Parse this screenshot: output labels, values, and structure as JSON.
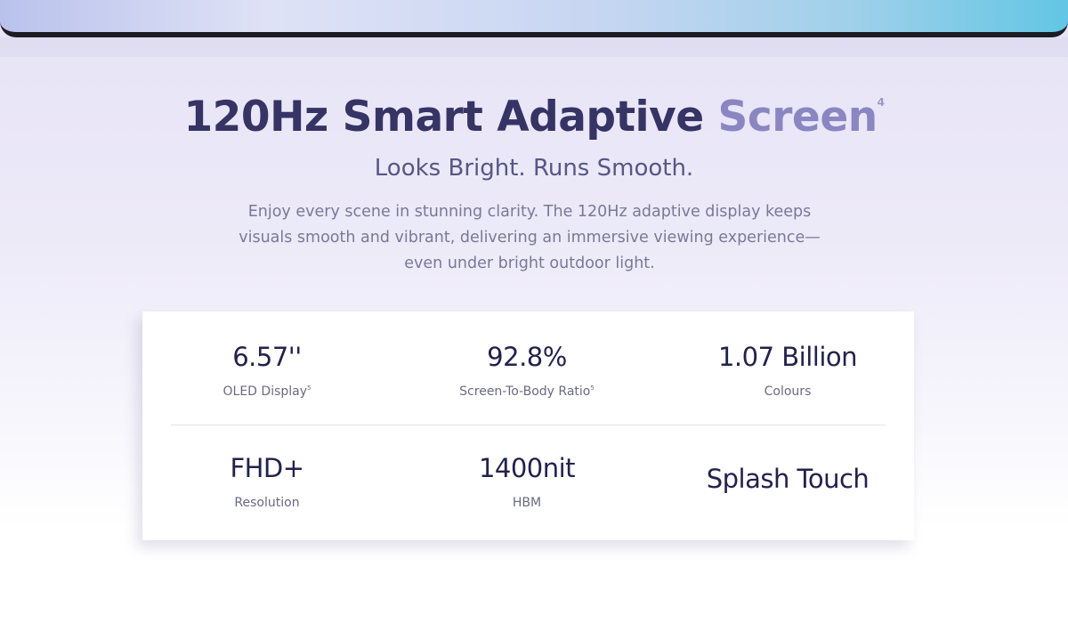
{
  "header": {
    "title_main": "120Hz Smart Adaptive",
    "title_accent": "Screen",
    "title_note": "4",
    "subtitle": "Looks Bright. Runs Smooth.",
    "description": "Enjoy every scene in stunning clarity. The 120Hz adaptive display keeps visuals smooth and vibrant, delivering an immersive viewing experience—even under bright outdoor light."
  },
  "specs": [
    {
      "value": "6.57''",
      "label": "OLED Display",
      "note": "5"
    },
    {
      "value": "92.8%",
      "label": "Screen-To-Body Ratio",
      "note": "5"
    },
    {
      "value": "1.07 Billion",
      "label": "Colours"
    },
    {
      "value": "FHD+",
      "label": "Resolution"
    },
    {
      "value": "1400nit",
      "label": "HBM"
    },
    {
      "value": "Splash Touch"
    }
  ]
}
